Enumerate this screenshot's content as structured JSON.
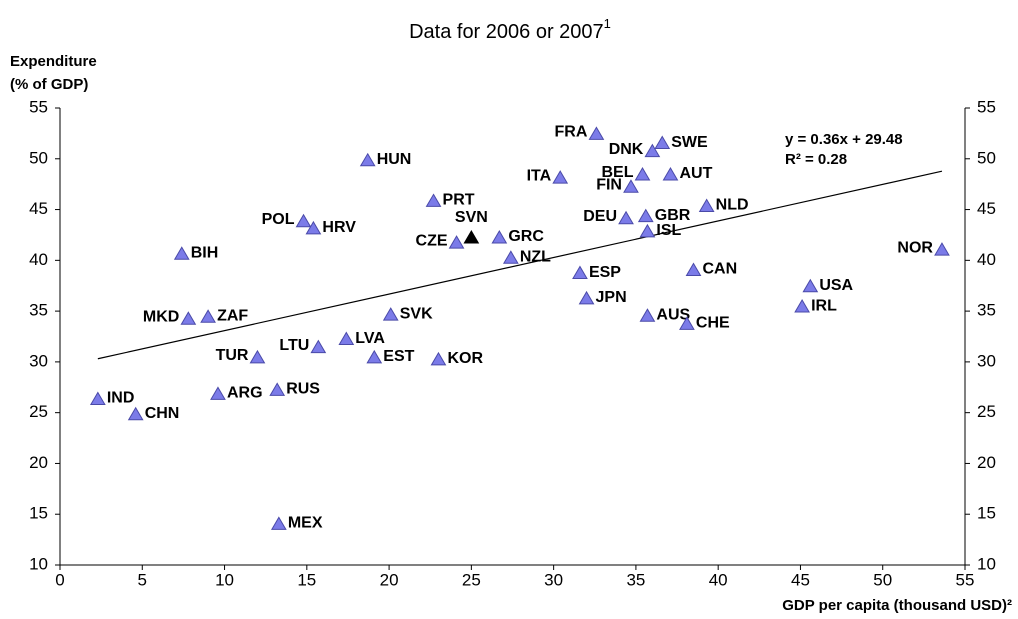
{
  "chart_data": {
    "type": "scatter",
    "title": "Data for 2006 or 2007",
    "title_superscript": "1",
    "y_label_lines": [
      "Expenditure",
      "(% of GDP)"
    ],
    "x_label": "GDP per capita (thousand USD)²",
    "labels": [
      "IND",
      "CHN",
      "BIH",
      "MKD",
      "ZAF",
      "ARG",
      "TUR",
      "RUS",
      "MEX",
      "POL",
      "HRV",
      "LTU",
      "LVA",
      "HUN",
      "EST",
      "SVK",
      "PRT",
      "SVN",
      "CZE",
      "GRC",
      "NZL",
      "KOR",
      "ITA",
      "ESP",
      "JPN",
      "FRA",
      "DEU",
      "FIN",
      "BEL",
      "GBR",
      "ISL",
      "AUS",
      "DNK",
      "SWE",
      "AUT",
      "CHE",
      "CAN",
      "NLD",
      "IRL",
      "USA",
      "NOR"
    ],
    "x": [
      2.3,
      4.6,
      7.4,
      7.8,
      9.0,
      9.6,
      12.0,
      13.2,
      13.3,
      14.8,
      15.4,
      15.7,
      17.4,
      18.7,
      19.1,
      20.1,
      22.7,
      25.0,
      24.1,
      26.7,
      27.4,
      23.0,
      30.4,
      31.6,
      32.0,
      32.6,
      34.4,
      34.7,
      35.4,
      35.6,
      35.7,
      35.7,
      36.0,
      36.6,
      37.1,
      38.1,
      38.5,
      39.3,
      45.1,
      45.6,
      53.6
    ],
    "values": [
      26.3,
      24.8,
      40.6,
      34.2,
      34.4,
      26.8,
      30.4,
      27.2,
      14.0,
      43.8,
      43.1,
      31.4,
      32.2,
      49.8,
      30.4,
      34.6,
      45.8,
      42.2,
      41.7,
      42.2,
      40.2,
      30.2,
      48.1,
      38.7,
      36.2,
      52.4,
      44.1,
      47.2,
      48.4,
      44.3,
      42.8,
      34.5,
      50.7,
      51.5,
      48.4,
      33.7,
      39.0,
      45.3,
      35.4,
      37.4,
      41.0
    ],
    "color": "#7b7be8",
    "highlight": "SVN",
    "highlight_color": "#000000",
    "trendline": {
      "slope": 0.36,
      "intercept": 29.48,
      "label": "y   = 0.36x + 29.48",
      "r2_label": "R² = 0.28",
      "color": "#000000"
    },
    "xlim": [
      0,
      55
    ],
    "xticks": [
      0,
      5,
      10,
      15,
      20,
      25,
      30,
      35,
      40,
      45,
      50,
      55
    ],
    "ylim": [
      10,
      55
    ],
    "yticks": [
      10,
      15,
      20,
      25,
      30,
      35,
      40,
      45,
      50,
      55
    ],
    "grid": false
  }
}
